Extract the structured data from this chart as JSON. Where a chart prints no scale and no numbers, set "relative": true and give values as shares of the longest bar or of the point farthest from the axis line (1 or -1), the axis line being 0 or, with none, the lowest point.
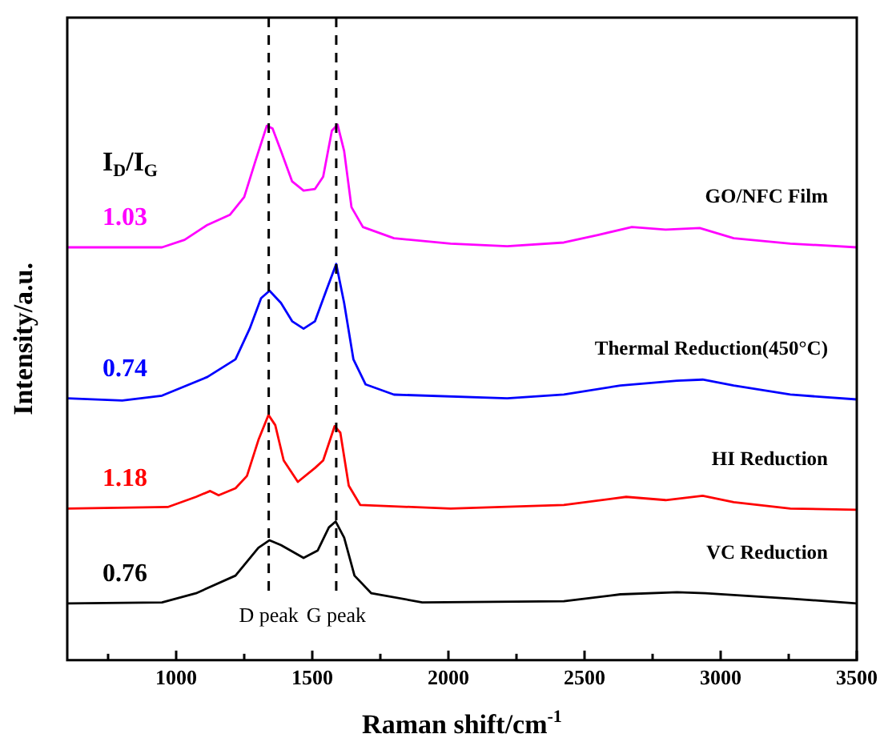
{
  "chart_data": {
    "type": "line",
    "relative": true,
    "xlabel": "Raman shift/cm$^{-1}$",
    "ylabel": "Intensity/a.u.",
    "xlim": [
      600,
      3500
    ],
    "xticks": [
      {
        "value": 750,
        "label": null
      },
      1000,
      {
        "value": 1250,
        "label": null
      },
      1500,
      {
        "value": 1750,
        "label": null
      },
      2000,
      {
        "value": 2250,
        "label": null
      },
      2500,
      {
        "value": 2750,
        "label": null
      },
      3000,
      {
        "value": 3250,
        "label": null
      },
      3500
    ],
    "grid": false,
    "legend": false,
    "series": [
      {
        "name": "GO/NFC Film",
        "color": "#ff00ff",
        "x": [
          600,
          948,
          1031,
          1115,
          1198,
          1250,
          1291,
          1333,
          1354,
          1385,
          1426,
          1468,
          1510,
          1540,
          1572,
          1593,
          1617,
          1644,
          1686,
          1800,
          2008,
          2216,
          2424,
          2549,
          2674,
          2798,
          2923,
          3048,
          3256,
          3500
        ],
        "values": [
          0.771,
          0.771,
          0.785,
          0.813,
          0.832,
          0.865,
          0.932,
          0.998,
          0.993,
          0.951,
          0.894,
          0.877,
          0.88,
          0.903,
          0.989,
          1.0,
          0.951,
          0.846,
          0.809,
          0.788,
          0.778,
          0.773,
          0.78,
          0.794,
          0.809,
          0.804,
          0.807,
          0.788,
          0.778,
          0.771
        ]
      },
      {
        "name": "Thermal Reduction(450°C)",
        "color": "#0000ff",
        "x": [
          600,
          802,
          948,
          1115,
          1218,
          1270,
          1312,
          1343,
          1385,
          1426,
          1468,
          1510,
          1551,
          1588,
          1617,
          1651,
          1696,
          1800,
          2216,
          2424,
          2632,
          2840,
          2934,
          3048,
          3256,
          3500
        ],
        "values": [
          0.489,
          0.485,
          0.494,
          0.529,
          0.562,
          0.619,
          0.676,
          0.69,
          0.667,
          0.633,
          0.619,
          0.633,
          0.69,
          0.74,
          0.667,
          0.562,
          0.515,
          0.496,
          0.489,
          0.496,
          0.513,
          0.522,
          0.524,
          0.513,
          0.496,
          0.487
        ]
      },
      {
        "name": "HI Reduction",
        "color": "#ff0000",
        "x": [
          600,
          969,
          1073,
          1125,
          1156,
          1218,
          1260,
          1302,
          1339,
          1364,
          1395,
          1447,
          1510,
          1540,
          1582,
          1603,
          1634,
          1676,
          2008,
          2424,
          2653,
          2798,
          2934,
          3048,
          3256,
          3500
        ],
        "values": [
          0.283,
          0.286,
          0.305,
          0.316,
          0.308,
          0.321,
          0.344,
          0.411,
          0.458,
          0.439,
          0.373,
          0.333,
          0.359,
          0.373,
          0.437,
          0.425,
          0.326,
          0.29,
          0.283,
          0.29,
          0.305,
          0.299,
          0.307,
          0.295,
          0.283,
          0.281
        ]
      },
      {
        "name": "VC Reduction",
        "color": "#000000",
        "x": [
          600,
          948,
          1073,
          1218,
          1302,
          1343,
          1385,
          1468,
          1520,
          1561,
          1586,
          1617,
          1655,
          1717,
          1904,
          2424,
          2632,
          2840,
          2944,
          3256,
          3500
        ],
        "values": [
          0.106,
          0.108,
          0.125,
          0.158,
          0.21,
          0.224,
          0.215,
          0.191,
          0.205,
          0.248,
          0.259,
          0.229,
          0.158,
          0.125,
          0.108,
          0.11,
          0.123,
          0.127,
          0.125,
          0.115,
          0.106
        ]
      }
    ],
    "line_style": "solid",
    "ref_lines": [
      {
        "axis": "x",
        "value": 1340,
        "label": "D peak",
        "color": "#000000",
        "line_style": "dashed"
      },
      {
        "axis": "x",
        "value": 1588,
        "label": "G peak",
        "color": "#000000",
        "line_style": "dashed"
      }
    ],
    "annotations": [
      "I$_{D}$/I$_{G}$",
      "1.03",
      "0.74",
      "1.18",
      "0.76"
    ]
  }
}
